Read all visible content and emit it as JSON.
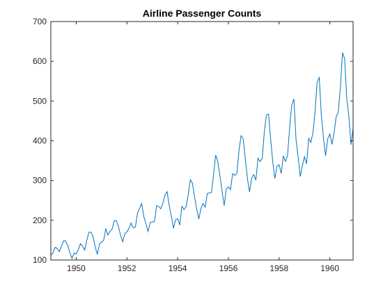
{
  "chart_data": {
    "type": "line",
    "title": "Airline Passenger Counts",
    "xlabel": "",
    "ylabel": "",
    "xlim": [
      1949.0,
      1960.9167
    ],
    "ylim": [
      100,
      700
    ],
    "xticks": [
      1950,
      1952,
      1954,
      1956,
      1958,
      1960
    ],
    "yticks": [
      100,
      200,
      300,
      400,
      500,
      600,
      700
    ],
    "grid": false,
    "line_color": "#0072BD",
    "x_start": 1949.0,
    "x_step": 0.083333,
    "values": [
      112,
      118,
      132,
      129,
      121,
      135,
      148,
      148,
      136,
      119,
      104,
      118,
      115,
      126,
      141,
      135,
      125,
      149,
      170,
      170,
      158,
      133,
      114,
      140,
      145,
      150,
      178,
      163,
      172,
      178,
      199,
      199,
      184,
      162,
      146,
      166,
      171,
      180,
      193,
      181,
      183,
      218,
      230,
      242,
      209,
      191,
      172,
      194,
      196,
      196,
      236,
      235,
      229,
      243,
      264,
      272,
      237,
      211,
      180,
      201,
      204,
      188,
      235,
      227,
      234,
      264,
      302,
      293,
      259,
      229,
      203,
      229,
      242,
      233,
      267,
      269,
      270,
      315,
      364,
      347,
      312,
      274,
      237,
      278,
      284,
      277,
      317,
      313,
      318,
      374,
      413,
      405,
      355,
      306,
      271,
      306,
      315,
      301,
      356,
      348,
      355,
      422,
      465,
      467,
      404,
      347,
      305,
      336,
      340,
      318,
      362,
      348,
      363,
      435,
      491,
      505,
      404,
      359,
      310,
      337,
      360,
      342,
      406,
      396,
      420,
      472,
      548,
      559,
      463,
      407,
      362,
      405,
      417,
      391,
      419,
      461,
      472,
      535,
      622,
      606,
      508,
      461,
      390,
      432
    ]
  }
}
